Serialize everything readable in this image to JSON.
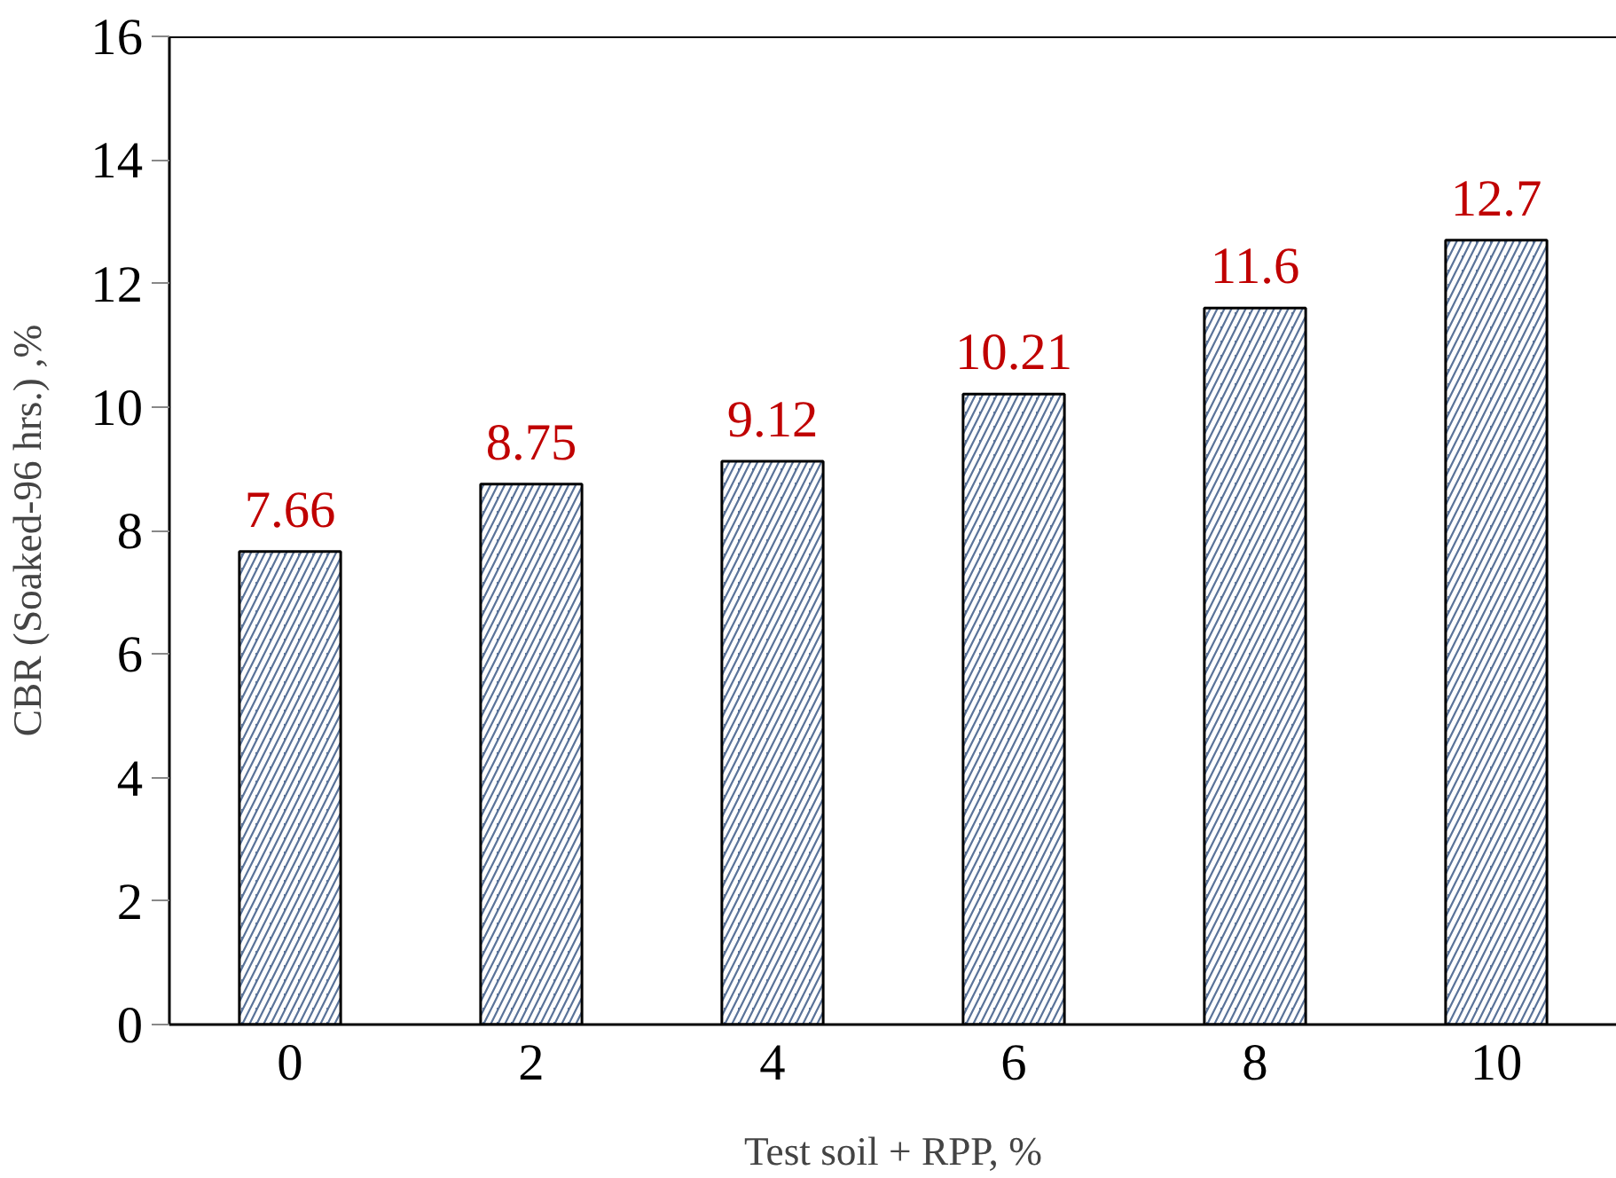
{
  "chart_data": {
    "type": "bar",
    "xlabel": "Test soil + RPP, %",
    "ylabel": "CBR (Soaked-96 hrs.) ,%",
    "categories": [
      "0",
      "2",
      "4",
      "6",
      "8",
      "10"
    ],
    "values": [
      7.66,
      8.75,
      9.12,
      10.21,
      11.6,
      12.7
    ],
    "color": "#5a7399",
    "data_labels": true,
    "ylim": [
      0,
      16
    ],
    "yticks": [
      0,
      2,
      4,
      6,
      8,
      10,
      12,
      14,
      16
    ],
    "grid": false
  }
}
